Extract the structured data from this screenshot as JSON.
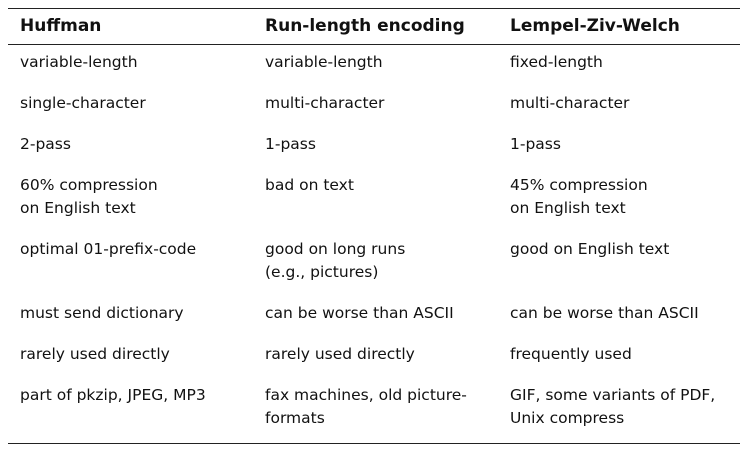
{
  "table": {
    "headers": [
      "Huffman",
      "Run-length encoding",
      "Lempel-Ziv-Welch"
    ],
    "rows": [
      [
        [
          "variable-length"
        ],
        [
          "variable-length"
        ],
        [
          "fixed-length"
        ]
      ],
      [
        [
          "single-character"
        ],
        [
          "multi-character"
        ],
        [
          "multi-character"
        ]
      ],
      [
        [
          "2-pass"
        ],
        [
          "1-pass"
        ],
        [
          "1-pass"
        ]
      ],
      [
        [
          "60% compression",
          "on English text"
        ],
        [
          "bad on text"
        ],
        [
          "45% compression",
          "on English text"
        ]
      ],
      [
        [
          "optimal 01-prefix-code"
        ],
        [
          "good on long runs",
          "(e.g., pictures)"
        ],
        [
          "good on English text"
        ]
      ],
      [
        [
          "must send dictionary"
        ],
        [
          "can be worse than ASCII"
        ],
        [
          "can be worse than ASCII"
        ]
      ],
      [
        [
          "rarely used directly"
        ],
        [
          "rarely used directly"
        ],
        [
          "frequently used"
        ]
      ],
      [
        [
          "part of pkzip, JPEG, MP3"
        ],
        [
          "fax machines, old picture-",
          "formats"
        ],
        [
          "GIF, some variants of PDF,",
          "Unix compress"
        ]
      ]
    ]
  }
}
